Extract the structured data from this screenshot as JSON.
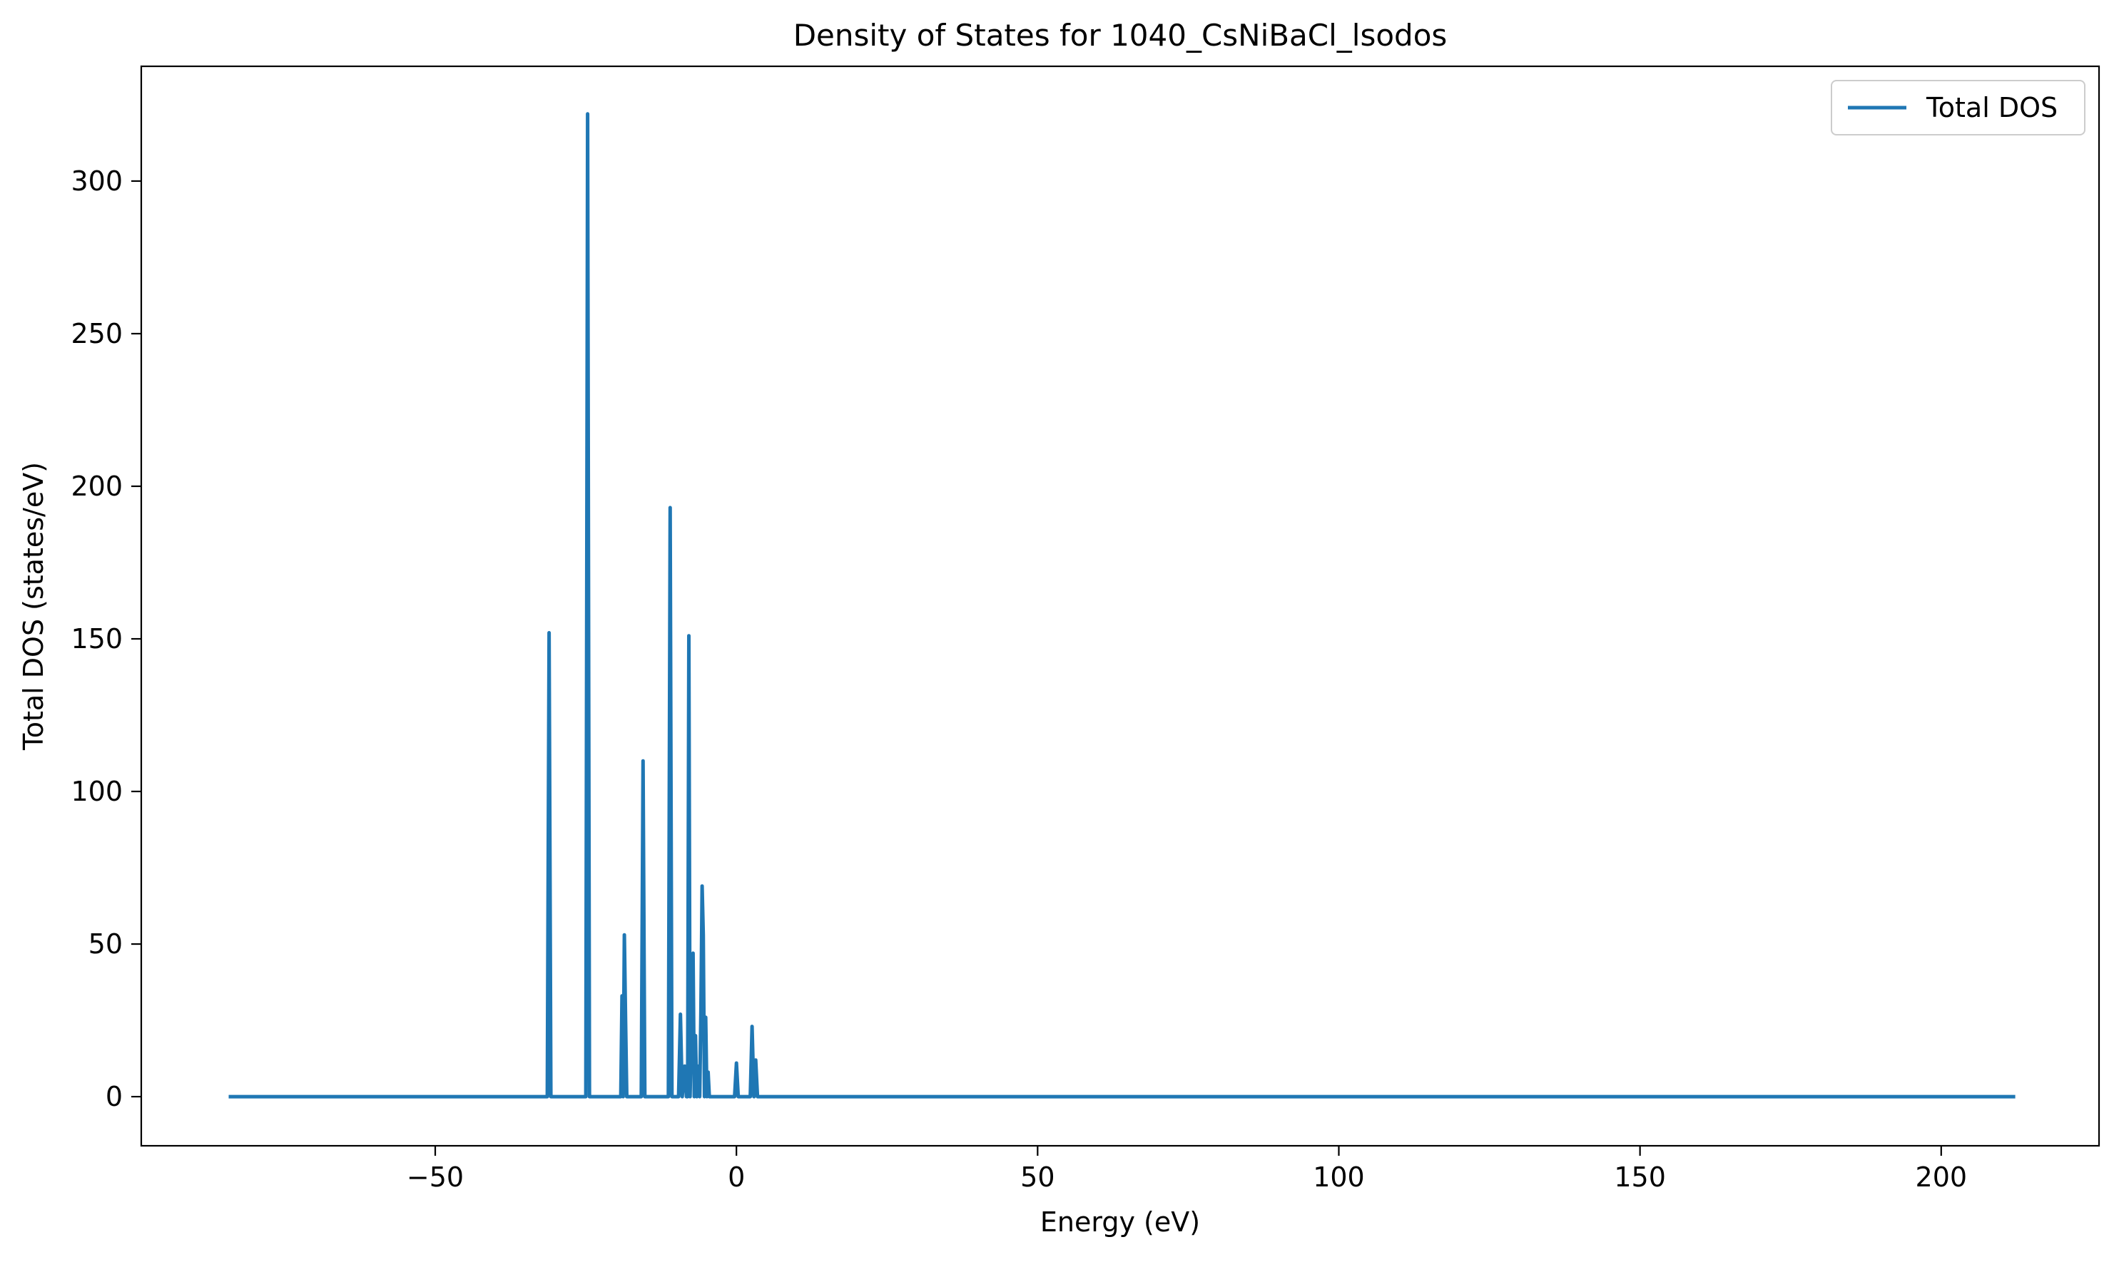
{
  "chart_data": {
    "type": "line",
    "title": "Density of States for 1040_CsNiBaCl_lsodos",
    "xlabel": "Energy (eV)",
    "ylabel": "Total DOS (states/eV)",
    "xlim": [
      -98.8,
      226.2
    ],
    "ylim": [
      -16.1,
      337.6
    ],
    "xticks": [
      -50,
      0,
      50,
      100,
      150,
      200
    ],
    "xtick_labels": [
      "−50",
      "0",
      "50",
      "100",
      "150",
      "200"
    ],
    "yticks": [
      0,
      50,
      100,
      150,
      200,
      250,
      300
    ],
    "ytick_labels": [
      "0",
      "50",
      "100",
      "150",
      "200",
      "250",
      "300"
    ],
    "grid": false,
    "legend": {
      "position": "top-right",
      "entries": [
        "Total DOS"
      ]
    },
    "series": [
      {
        "name": "Total DOS",
        "color": "#1f77b4",
        "points": [
          [
            -84.0,
            0
          ],
          [
            -31.4,
            0
          ],
          [
            -31.1,
            152
          ],
          [
            -30.8,
            0
          ],
          [
            -25.0,
            0
          ],
          [
            -24.7,
            322
          ],
          [
            -24.4,
            0
          ],
          [
            -19.2,
            0
          ],
          [
            -19.0,
            33
          ],
          [
            -18.8,
            0
          ],
          [
            -18.6,
            53
          ],
          [
            -18.4,
            25
          ],
          [
            -18.2,
            0
          ],
          [
            -15.8,
            0
          ],
          [
            -15.5,
            110
          ],
          [
            -15.2,
            0
          ],
          [
            -11.3,
            0
          ],
          [
            -11.0,
            193
          ],
          [
            -10.7,
            0
          ],
          [
            -9.6,
            0
          ],
          [
            -9.3,
            27
          ],
          [
            -9.0,
            0
          ],
          [
            -8.6,
            10
          ],
          [
            -8.3,
            0
          ],
          [
            -8.1,
            0
          ],
          [
            -7.9,
            151
          ],
          [
            -7.7,
            0
          ],
          [
            -7.4,
            30
          ],
          [
            -7.2,
            47
          ],
          [
            -7.0,
            0
          ],
          [
            -6.8,
            20
          ],
          [
            -6.6,
            0
          ],
          [
            -6.3,
            10
          ],
          [
            -6.1,
            0
          ],
          [
            -5.9,
            28
          ],
          [
            -5.7,
            69
          ],
          [
            -5.5,
            53
          ],
          [
            -5.3,
            0
          ],
          [
            -5.1,
            26
          ],
          [
            -4.9,
            0
          ],
          [
            -4.7,
            8
          ],
          [
            -4.5,
            0
          ],
          [
            -0.3,
            0
          ],
          [
            0.0,
            11
          ],
          [
            0.3,
            0
          ],
          [
            2.3,
            0
          ],
          [
            2.6,
            23
          ],
          [
            2.9,
            0
          ],
          [
            3.2,
            12
          ],
          [
            3.5,
            0
          ],
          [
            212.0,
            0
          ]
        ]
      }
    ]
  }
}
